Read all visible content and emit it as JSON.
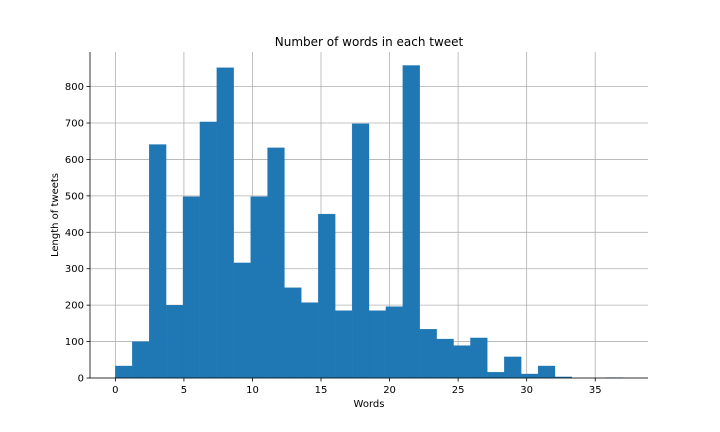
{
  "chart_data": {
    "type": "bar",
    "title": "Number of words in each tweet",
    "xlabel": "Words",
    "ylabel": "Length of tweets",
    "xlim": [
      -1.85,
      38.85
    ],
    "ylim": [
      0,
      895
    ],
    "xticks": [
      0,
      5,
      10,
      15,
      20,
      25,
      30,
      35
    ],
    "yticks": [
      0,
      100,
      200,
      300,
      400,
      500,
      600,
      700,
      800
    ],
    "grid": true,
    "legend": "none",
    "color": "#1f77b4",
    "bin_width": 1.233,
    "bins": [
      {
        "x0": 0.0,
        "value": 33
      },
      {
        "x0": 1.233,
        "value": 100
      },
      {
        "x0": 2.467,
        "value": 641
      },
      {
        "x0": 3.7,
        "value": 200
      },
      {
        "x0": 4.933,
        "value": 498
      },
      {
        "x0": 6.167,
        "value": 703
      },
      {
        "x0": 7.4,
        "value": 852
      },
      {
        "x0": 8.633,
        "value": 316
      },
      {
        "x0": 9.867,
        "value": 498
      },
      {
        "x0": 11.1,
        "value": 632
      },
      {
        "x0": 12.333,
        "value": 248
      },
      {
        "x0": 13.567,
        "value": 207
      },
      {
        "x0": 14.8,
        "value": 450
      },
      {
        "x0": 16.033,
        "value": 185
      },
      {
        "x0": 17.267,
        "value": 698
      },
      {
        "x0": 18.5,
        "value": 185
      },
      {
        "x0": 19.733,
        "value": 196
      },
      {
        "x0": 20.967,
        "value": 858
      },
      {
        "x0": 22.2,
        "value": 134
      },
      {
        "x0": 23.433,
        "value": 107
      },
      {
        "x0": 24.667,
        "value": 89
      },
      {
        "x0": 25.9,
        "value": 110
      },
      {
        "x0": 27.133,
        "value": 16
      },
      {
        "x0": 28.367,
        "value": 58
      },
      {
        "x0": 29.6,
        "value": 11
      },
      {
        "x0": 30.833,
        "value": 33
      },
      {
        "x0": 32.067,
        "value": 3
      },
      {
        "x0": 33.3,
        "value": 0
      },
      {
        "x0": 34.533,
        "value": 0
      },
      {
        "x0": 35.767,
        "value": 1
      }
    ]
  }
}
